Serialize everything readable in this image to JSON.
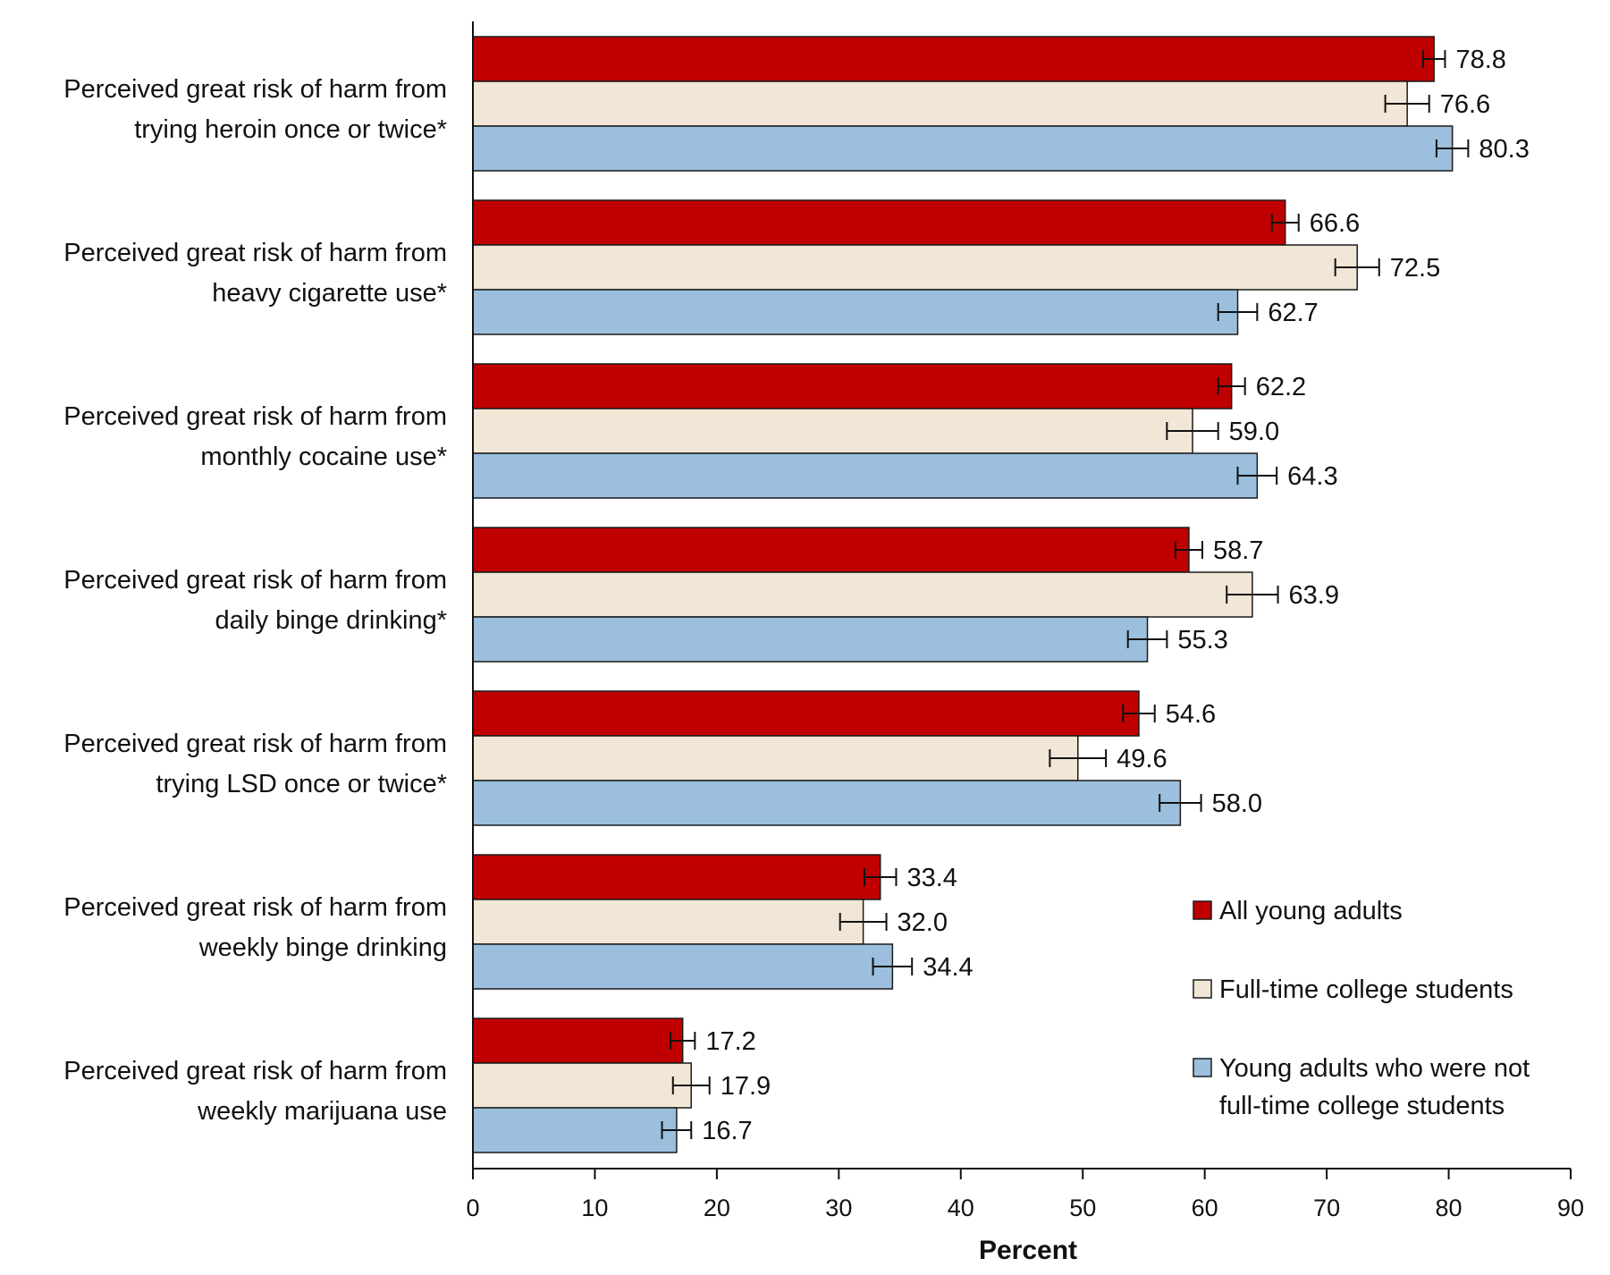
{
  "chart_data": {
    "type": "bar",
    "orientation": "horizontal",
    "title": "",
    "xlabel": "Percent",
    "ylabel": "",
    "xlim": [
      0,
      90
    ],
    "xticks": [
      0,
      10,
      20,
      30,
      40,
      50,
      60,
      70,
      80,
      90
    ],
    "grid": false,
    "legend_position": "bottom-right",
    "error_bars": true,
    "categories": [
      [
        "Perceived great risk of harm from",
        "trying heroin once or twice*"
      ],
      [
        "Perceived great risk of harm from",
        "heavy cigarette use*"
      ],
      [
        "Perceived great risk of harm from",
        "monthly cocaine use*"
      ],
      [
        "Perceived great risk of harm from",
        "daily binge drinking*"
      ],
      [
        "Perceived great risk of harm from",
        "trying LSD once or twice*"
      ],
      [
        "Perceived great risk of harm from",
        "weekly binge drinking"
      ],
      [
        "Perceived great risk of harm from",
        "weekly marijuana use"
      ]
    ],
    "series": [
      {
        "name": "All young adults",
        "legend_lines": [
          "All young adults"
        ],
        "color": "#c00000",
        "values": [
          78.8,
          66.6,
          62.2,
          58.7,
          54.6,
          33.4,
          17.2
        ],
        "labels": [
          "78.8",
          "66.6",
          "62.2",
          "58.7",
          "54.6",
          "33.4",
          "17.2"
        ],
        "errors": [
          0.9,
          1.1,
          1.1,
          1.1,
          1.3,
          1.3,
          1.0
        ]
      },
      {
        "name": "Full-time college students",
        "legend_lines": [
          "Full-time college students"
        ],
        "color": "#f2e6d6",
        "values": [
          76.6,
          72.5,
          59.0,
          63.9,
          49.6,
          32.0,
          17.9
        ],
        "labels": [
          "76.6",
          "72.5",
          "59.0",
          "63.9",
          "49.6",
          "32.0",
          "17.9"
        ],
        "errors": [
          1.8,
          1.8,
          2.1,
          2.1,
          2.3,
          1.9,
          1.5
        ]
      },
      {
        "name": "Young adults who were not full-time college students",
        "legend_lines": [
          "Young adults who were not",
          "full-time college students"
        ],
        "color": "#9bbfdd",
        "values": [
          80.3,
          62.7,
          64.3,
          55.3,
          58.0,
          34.4,
          16.7
        ],
        "labels": [
          "80.3",
          "62.7",
          "64.3",
          "55.3",
          "58.0",
          "34.4",
          "16.7"
        ],
        "errors": [
          1.3,
          1.6,
          1.6,
          1.6,
          1.7,
          1.6,
          1.2
        ]
      }
    ]
  }
}
